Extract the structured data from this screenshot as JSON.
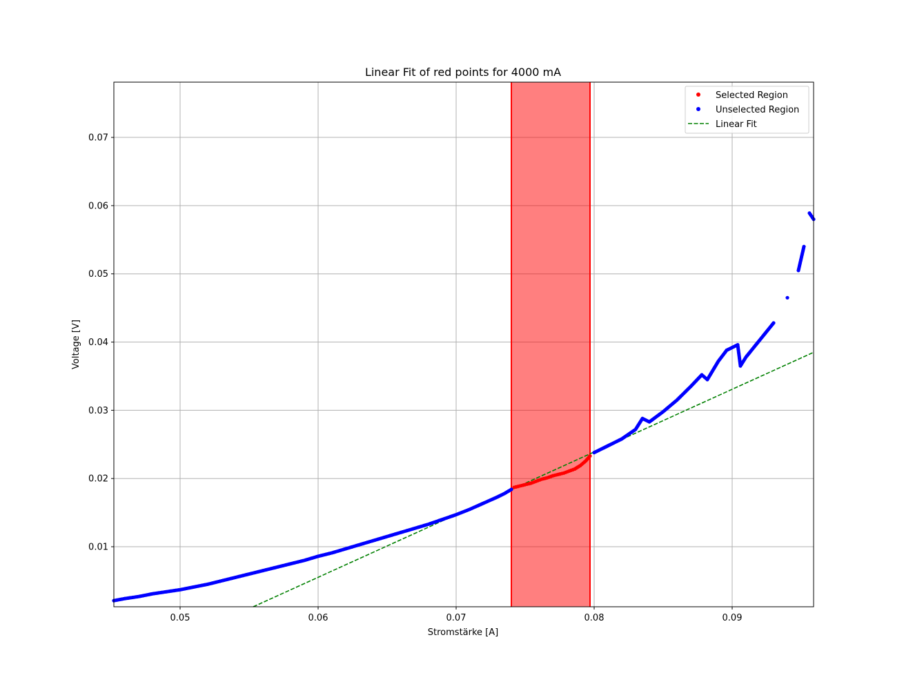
{
  "chart_data": {
    "type": "scatter",
    "title": "Linear Fit of red points for 4000 mA",
    "xlabel": "Stromstärke [A]",
    "ylabel": "Voltage [V]",
    "xlim": [
      0.0452,
      0.0959
    ],
    "ylim": [
      0.0012,
      0.0781
    ],
    "xticks": [
      0.05,
      0.06,
      0.07,
      0.08,
      0.09
    ],
    "xtick_labels": [
      "0.05",
      "0.06",
      "0.07",
      "0.08",
      "0.09"
    ],
    "yticks": [
      0.01,
      0.02,
      0.03,
      0.04,
      0.05,
      0.06,
      0.07
    ],
    "ytick_labels": [
      "0.01",
      "0.02",
      "0.03",
      "0.04",
      "0.05",
      "0.06",
      "0.07"
    ],
    "grid": true,
    "legend_position": "top-right",
    "selected_region": {
      "x_start": 0.074,
      "x_end": 0.0797,
      "color": "#ff0000"
    },
    "series": [
      {
        "name": "Selected Region",
        "kind": "points",
        "color": "#ff0000",
        "points": [
          [
            0.0742,
            0.0187
          ],
          [
            0.0746,
            0.0189
          ],
          [
            0.075,
            0.0191
          ],
          [
            0.0754,
            0.0193
          ],
          [
            0.0758,
            0.0196
          ],
          [
            0.0762,
            0.0199
          ],
          [
            0.0766,
            0.0201
          ],
          [
            0.077,
            0.0204
          ],
          [
            0.0774,
            0.0206
          ],
          [
            0.0778,
            0.0208
          ],
          [
            0.0782,
            0.0211
          ],
          [
            0.0786,
            0.0214
          ],
          [
            0.079,
            0.0219
          ],
          [
            0.0794,
            0.0226
          ],
          [
            0.0797,
            0.0233
          ]
        ]
      },
      {
        "name": "Unselected Region",
        "kind": "points",
        "color": "#0000ff",
        "points": [
          [
            0.0452,
            0.0021
          ],
          [
            0.046,
            0.0024
          ],
          [
            0.047,
            0.0027
          ],
          [
            0.048,
            0.0031
          ],
          [
            0.049,
            0.0034
          ],
          [
            0.05,
            0.0037
          ],
          [
            0.051,
            0.0041
          ],
          [
            0.052,
            0.0045
          ],
          [
            0.053,
            0.005
          ],
          [
            0.054,
            0.0055
          ],
          [
            0.055,
            0.006
          ],
          [
            0.056,
            0.0065
          ],
          [
            0.057,
            0.007
          ],
          [
            0.058,
            0.0075
          ],
          [
            0.059,
            0.008
          ],
          [
            0.06,
            0.0086
          ],
          [
            0.061,
            0.0091
          ],
          [
            0.062,
            0.0097
          ],
          [
            0.063,
            0.0103
          ],
          [
            0.064,
            0.0109
          ],
          [
            0.065,
            0.0115
          ],
          [
            0.066,
            0.0121
          ],
          [
            0.067,
            0.0127
          ],
          [
            0.068,
            0.0133
          ],
          [
            0.069,
            0.014
          ],
          [
            0.07,
            0.0147
          ],
          [
            0.071,
            0.0155
          ],
          [
            0.072,
            0.0164
          ],
          [
            0.073,
            0.0173
          ],
          [
            0.0735,
            0.0178
          ],
          [
            0.074,
            0.0184
          ],
          [
            0.08,
            0.0238
          ],
          [
            0.081,
            0.0248
          ],
          [
            0.082,
            0.0258
          ],
          [
            0.083,
            0.0272
          ],
          [
            0.0835,
            0.0288
          ],
          [
            0.084,
            0.0283
          ],
          [
            0.085,
            0.0298
          ],
          [
            0.086,
            0.0315
          ],
          [
            0.087,
            0.0335
          ],
          [
            0.0878,
            0.0352
          ],
          [
            0.0882,
            0.0345
          ],
          [
            0.089,
            0.0372
          ],
          [
            0.0896,
            0.0388
          ],
          [
            0.0904,
            0.0396
          ],
          [
            0.0906,
            0.0365
          ],
          [
            0.091,
            0.0378
          ],
          [
            0.092,
            0.0403
          ],
          [
            0.093,
            0.0428
          ],
          [
            0.094,
            0.0465
          ],
          [
            0.0948,
            0.0505
          ],
          [
            0.0952,
            0.054
          ],
          [
            0.0956,
            0.0589
          ],
          [
            0.0959,
            0.058
          ]
        ]
      },
      {
        "name": "Linear Fit",
        "kind": "dashed-line",
        "color": "#008000",
        "points": [
          [
            0.0553,
            0.0012
          ],
          [
            0.0959,
            0.0385
          ]
        ]
      }
    ]
  }
}
